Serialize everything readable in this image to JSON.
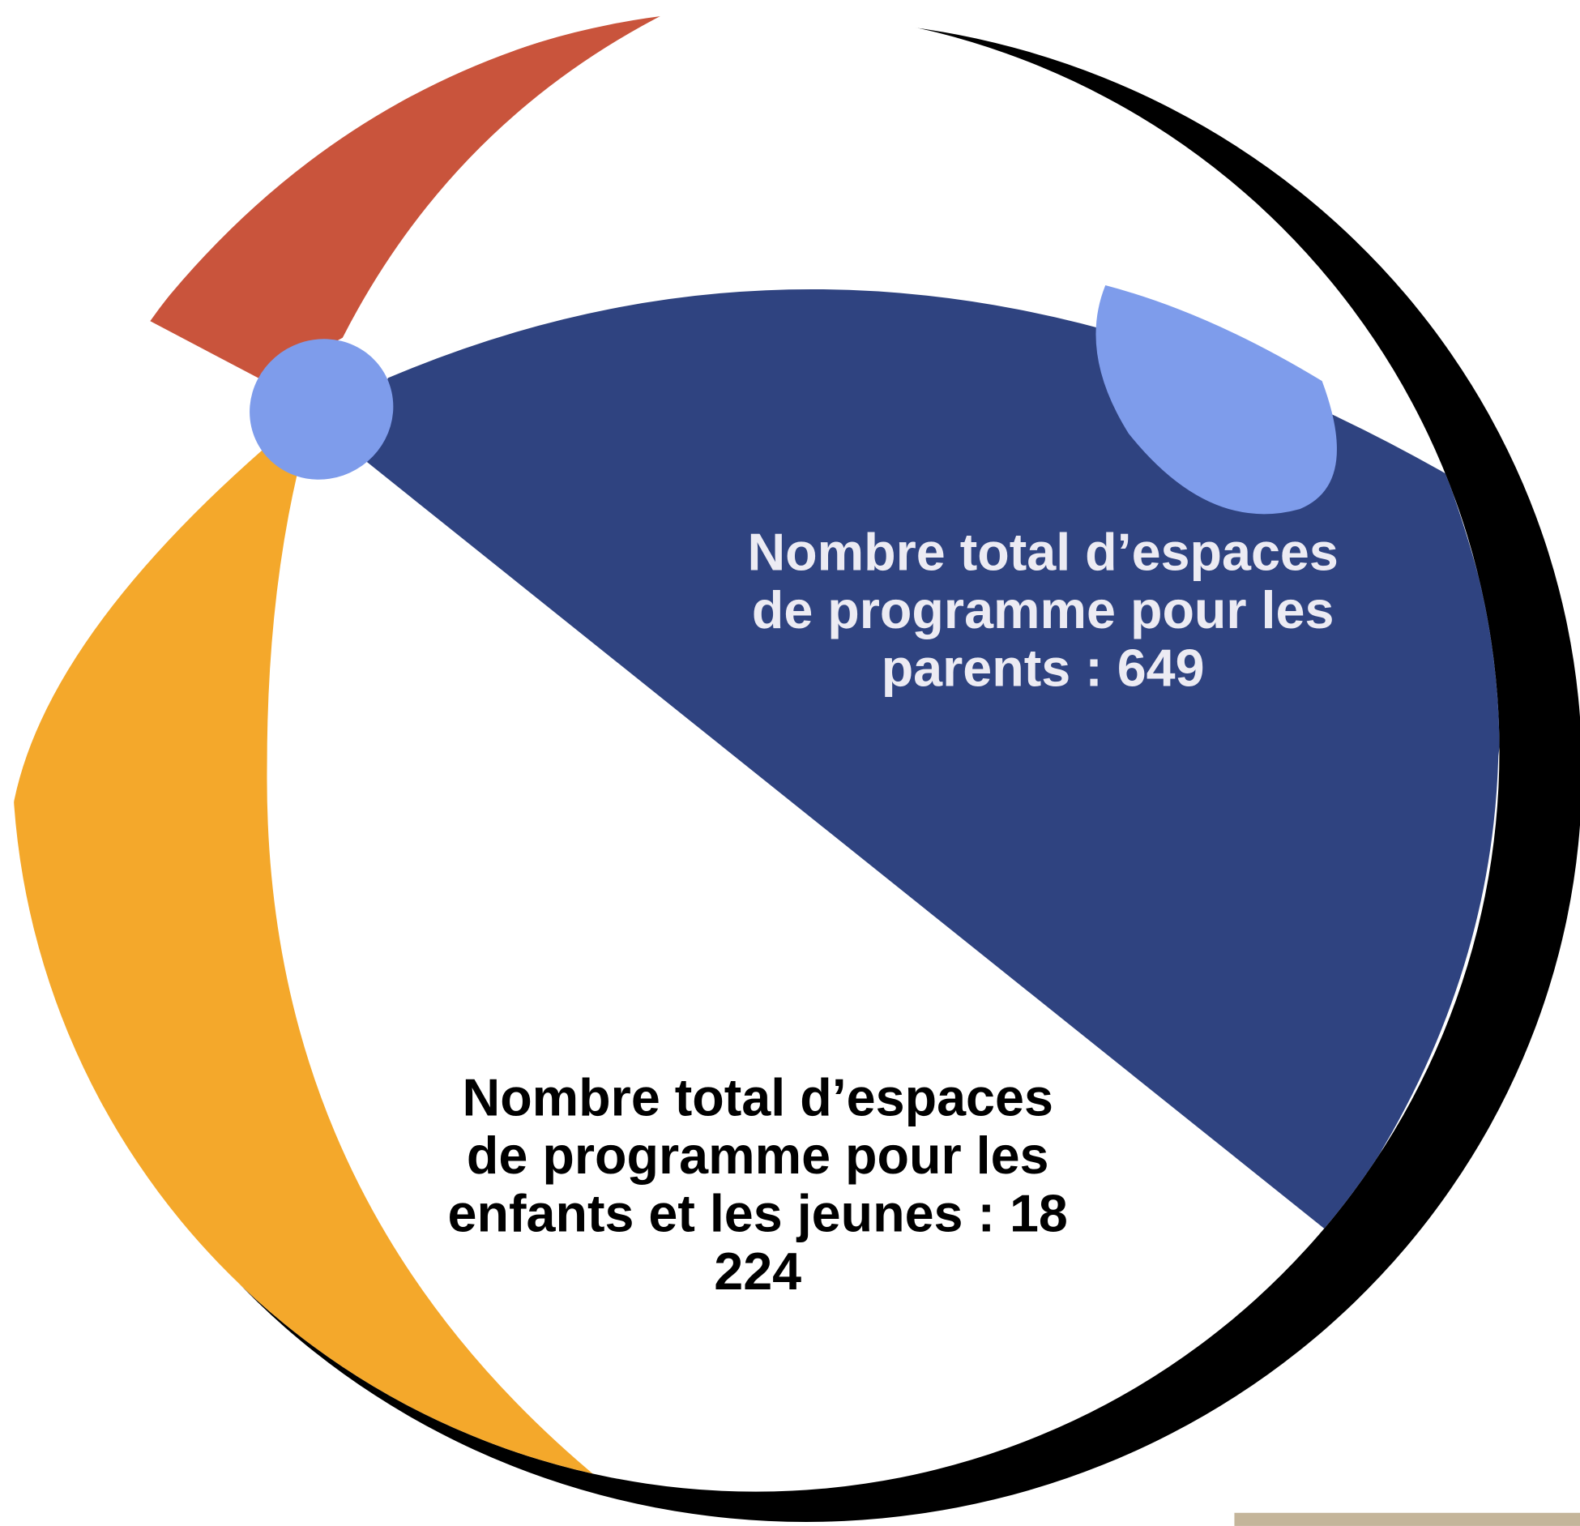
{
  "labels": [
    {
      "lines": [
        "Nombre total d’espaces",
        "de programme pour les",
        "parents : 649"
      ]
    },
    {
      "lines": [
        "Nombre total d’espaces",
        "de programme pour les",
        "enfants et les jeunes : 18",
        "224"
      ]
    }
  ]
}
